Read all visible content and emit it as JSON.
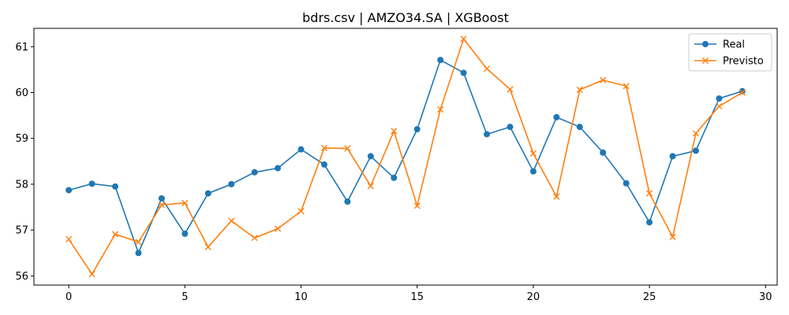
{
  "chart_data": {
    "type": "line",
    "title": "bdrs.csv | AMZO34.SA | XGBoost",
    "xlabel": "",
    "ylabel": "",
    "xlim": [
      -1.5,
      30.5
    ],
    "ylim": [
      55.8,
      61.4
    ],
    "xticks": [
      0,
      5,
      10,
      15,
      20,
      25,
      30
    ],
    "yticks": [
      56,
      57,
      58,
      59,
      60,
      61
    ],
    "grid": false,
    "legend_position": "top-right",
    "x": [
      0,
      1,
      2,
      3,
      4,
      5,
      6,
      7,
      8,
      9,
      10,
      11,
      12,
      13,
      14,
      15,
      16,
      17,
      18,
      19,
      20,
      21,
      22,
      23,
      24,
      25,
      26,
      27,
      28,
      29
    ],
    "series": [
      {
        "name": "Real",
        "color": "#1f77b4",
        "marker": "circle",
        "values": [
          57.87,
          58.01,
          57.95,
          56.5,
          57.69,
          56.92,
          57.8,
          58.0,
          58.26,
          58.35,
          58.76,
          58.43,
          57.62,
          58.61,
          58.14,
          59.2,
          60.71,
          60.43,
          59.09,
          59.25,
          58.28,
          59.46,
          59.25,
          58.69,
          58.02,
          57.17,
          58.61,
          58.73,
          59.87,
          60.03
        ]
      },
      {
        "name": "Previsto",
        "color": "#ff7f0e",
        "marker": "x",
        "values": [
          56.8,
          56.04,
          56.91,
          56.74,
          57.55,
          57.59,
          56.63,
          57.2,
          56.83,
          57.03,
          57.41,
          58.79,
          58.78,
          57.96,
          59.16,
          57.53,
          59.63,
          61.17,
          60.52,
          60.07,
          58.67,
          57.73,
          60.06,
          60.27,
          60.14,
          57.8,
          56.85,
          59.11,
          59.7,
          60.0
        ]
      }
    ]
  }
}
